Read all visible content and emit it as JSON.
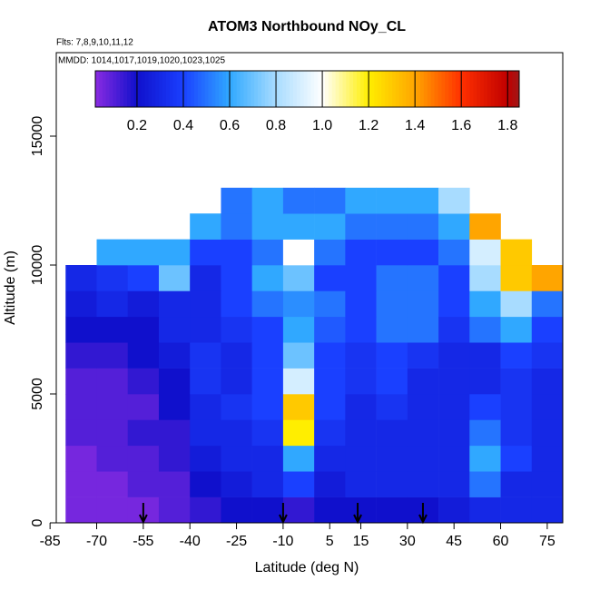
{
  "chart_data": {
    "type": "heatmap",
    "title": "ATOM3 Northbound NOy_CL",
    "subtitle": "Flts: 7,8,9,10,11,12",
    "annotation": "MMDD: 1014,1017,1019,1020,1023,1025",
    "x_label": "Latitude (deg N)",
    "y_label": "Altitude (m)",
    "xlim": [
      -83,
      80
    ],
    "ylim": [
      0,
      18240
    ],
    "xticks": [
      -85,
      -70,
      -55,
      -40,
      -25,
      -10,
      5,
      15,
      30,
      45,
      60,
      75
    ],
    "yticks": [
      0,
      5000,
      10000,
      15000
    ],
    "x_bins": [
      -80,
      -70,
      -60,
      -50,
      -40,
      -30,
      -20,
      -10,
      0,
      10,
      20,
      30,
      40,
      50,
      60,
      70,
      80
    ],
    "y_bins": [
      0,
      1000,
      2000,
      3000,
      4000,
      5000,
      6000,
      7000,
      8000,
      9000,
      10000,
      11000,
      12000,
      13000
    ],
    "z": [
      [
        0.05,
        0.05,
        0.05,
        0.1,
        0.15,
        0.2,
        0.2,
        0.15,
        0.2,
        0.2,
        0.2,
        0.2,
        0.25,
        0.3,
        0.3,
        0.3
      ],
      [
        0.05,
        0.05,
        0.1,
        0.1,
        0.2,
        0.25,
        0.3,
        0.4,
        0.25,
        0.3,
        0.3,
        0.3,
        0.3,
        0.5,
        0.3,
        0.3
      ],
      [
        0.05,
        0.1,
        0.1,
        0.15,
        0.25,
        0.3,
        0.3,
        0.6,
        0.3,
        0.3,
        0.3,
        0.3,
        0.3,
        0.6,
        0.4,
        0.3
      ],
      [
        0.1,
        0.1,
        0.15,
        0.15,
        0.3,
        0.3,
        0.35,
        1.2,
        0.35,
        0.3,
        0.3,
        0.3,
        0.3,
        0.5,
        0.35,
        0.3
      ],
      [
        0.1,
        0.1,
        0.1,
        0.2,
        0.3,
        0.35,
        0.4,
        1.3,
        0.4,
        0.3,
        0.35,
        0.3,
        0.3,
        0.4,
        0.35,
        0.3
      ],
      [
        0.1,
        0.1,
        0.15,
        0.2,
        0.35,
        0.3,
        0.4,
        0.9,
        0.4,
        0.35,
        0.4,
        0.3,
        0.3,
        0.3,
        0.35,
        0.3
      ],
      [
        0.15,
        0.15,
        0.2,
        0.25,
        0.35,
        0.3,
        0.4,
        0.7,
        0.4,
        0.35,
        0.4,
        0.35,
        0.3,
        0.3,
        0.4,
        0.35
      ],
      [
        0.2,
        0.2,
        0.2,
        0.3,
        0.3,
        0.35,
        0.4,
        0.6,
        0.45,
        0.4,
        0.5,
        0.5,
        0.35,
        0.5,
        0.6,
        0.4
      ],
      [
        0.25,
        0.3,
        0.25,
        0.3,
        0.3,
        0.4,
        0.5,
        0.55,
        0.5,
        0.4,
        0.5,
        0.5,
        0.4,
        0.6,
        0.8,
        0.5
      ],
      [
        0.3,
        0.35,
        0.4,
        0.7,
        0.3,
        0.4,
        0.6,
        0.7,
        0.4,
        0.4,
        0.5,
        0.5,
        0.4,
        0.8,
        1.3,
        1.4
      ],
      [
        null,
        0.6,
        0.6,
        0.6,
        0.4,
        0.4,
        0.5,
        1.0,
        0.5,
        0.4,
        0.4,
        0.4,
        0.5,
        0.9,
        1.3,
        null
      ],
      [
        null,
        null,
        null,
        null,
        0.6,
        0.5,
        0.6,
        0.6,
        0.6,
        0.5,
        0.5,
        0.5,
        0.6,
        1.4,
        null,
        null
      ],
      [
        null,
        null,
        null,
        null,
        null,
        0.5,
        0.6,
        0.5,
        0.5,
        0.6,
        0.6,
        0.6,
        0.8,
        null,
        null,
        null
      ]
    ],
    "flight_markers": [
      -55,
      -10,
      14,
      35
    ],
    "colorbar_lim": [
      0.02,
      1.85
    ],
    "colorbar_ticks": [
      0.2,
      0.4,
      0.6,
      0.8,
      {
        "value": 1,
        "label": "1.0"
      },
      1.2,
      1.4,
      1.6,
      1.8
    ],
    "colorscale": [
      [
        0.02,
        "#8a2be2"
      ],
      [
        0.2,
        "#1010cc"
      ],
      [
        0.4,
        "#1a40ff"
      ],
      [
        0.6,
        "#30a8ff"
      ],
      [
        0.8,
        "#a8dcff"
      ],
      [
        1.0,
        "#ffffff"
      ],
      [
        1.2,
        "#ffee00"
      ],
      [
        1.4,
        "#ffa500"
      ],
      [
        1.6,
        "#ff3000"
      ],
      [
        1.8,
        "#c00000"
      ],
      [
        1.85,
        "#a01818"
      ]
    ]
  }
}
